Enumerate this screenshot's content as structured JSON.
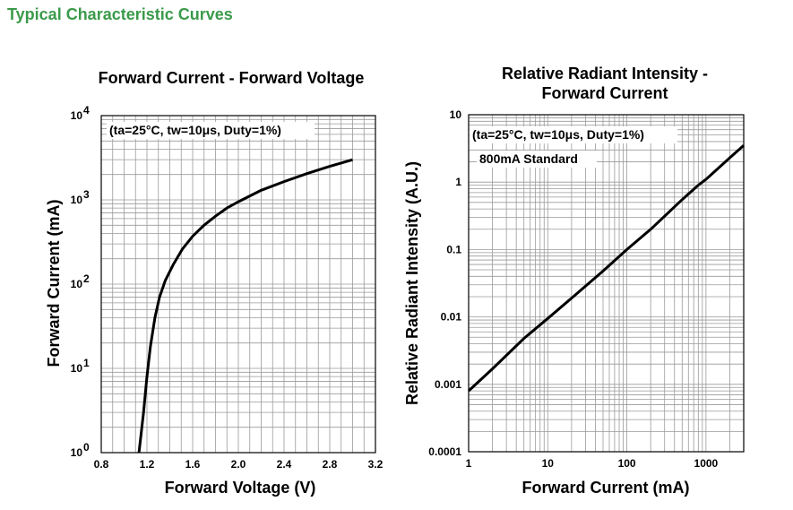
{
  "page": {
    "section_title": "Typical Characteristic Curves"
  },
  "chart_data": [
    {
      "type": "line",
      "title": "Forward Current - Forward Voltage",
      "xlabel": "Forward Voltage (V)",
      "ylabel": "Forward Current (mA)",
      "xlim": [
        0.8,
        3.2
      ],
      "ylim": [
        1,
        10000
      ],
      "yscale": "log",
      "grid": true,
      "x_ticks": [
        "0.8",
        "1.2",
        "1.6",
        "2.0",
        "2.4",
        "2.8",
        "3.2"
      ],
      "y_ticks": [
        {
          "base": "10",
          "exp": "0"
        },
        {
          "base": "10",
          "exp": "1"
        },
        {
          "base": "10",
          "exp": "2"
        },
        {
          "base": "10",
          "exp": "3"
        },
        {
          "base": "10",
          "exp": "4"
        }
      ],
      "annotation": "(ta=25°C, tw=10μs, Duty=1%)",
      "series": [
        {
          "x": [
            1.13,
            1.17,
            1.2,
            1.23,
            1.27,
            1.31,
            1.36,
            1.43,
            1.51,
            1.6,
            1.7,
            1.8,
            1.9,
            2.0,
            2.2,
            2.4,
            2.6,
            2.8,
            3.0
          ],
          "y": [
            1,
            3,
            8,
            18,
            40,
            70,
            110,
            170,
            260,
            370,
            500,
            640,
            800,
            950,
            1300,
            1650,
            2050,
            2500,
            3000
          ]
        }
      ]
    },
    {
      "type": "line",
      "title": "Relative Radiant Intensity - Forward Current",
      "title_lines": [
        "Relative Radiant Intensity -",
        "Forward Current"
      ],
      "xlabel": "Forward Current (mA)",
      "ylabel": "Relative Radiant Intensity (A.U.)",
      "xlim": [
        1,
        3000
      ],
      "ylim": [
        0.0001,
        10
      ],
      "xscale": "log",
      "yscale": "log",
      "grid": true,
      "x_ticks": [
        "1",
        "10",
        "100",
        "1000"
      ],
      "y_ticks": [
        "0.0001",
        "0.001",
        "0.01",
        "0.1",
        "1",
        "10"
      ],
      "annotation": "(ta=25°C, tw=10μs, Duty=1%)",
      "annotation2": "800mA Standard",
      "series": [
        {
          "x": [
            1,
            2,
            5,
            10,
            20,
            50,
            100,
            200,
            500,
            800,
            1000,
            2000,
            3000
          ],
          "y": [
            0.0008,
            0.0017,
            0.0048,
            0.0095,
            0.019,
            0.048,
            0.1,
            0.2,
            0.55,
            0.9,
            1.1,
            2.3,
            3.5
          ]
        }
      ]
    }
  ]
}
